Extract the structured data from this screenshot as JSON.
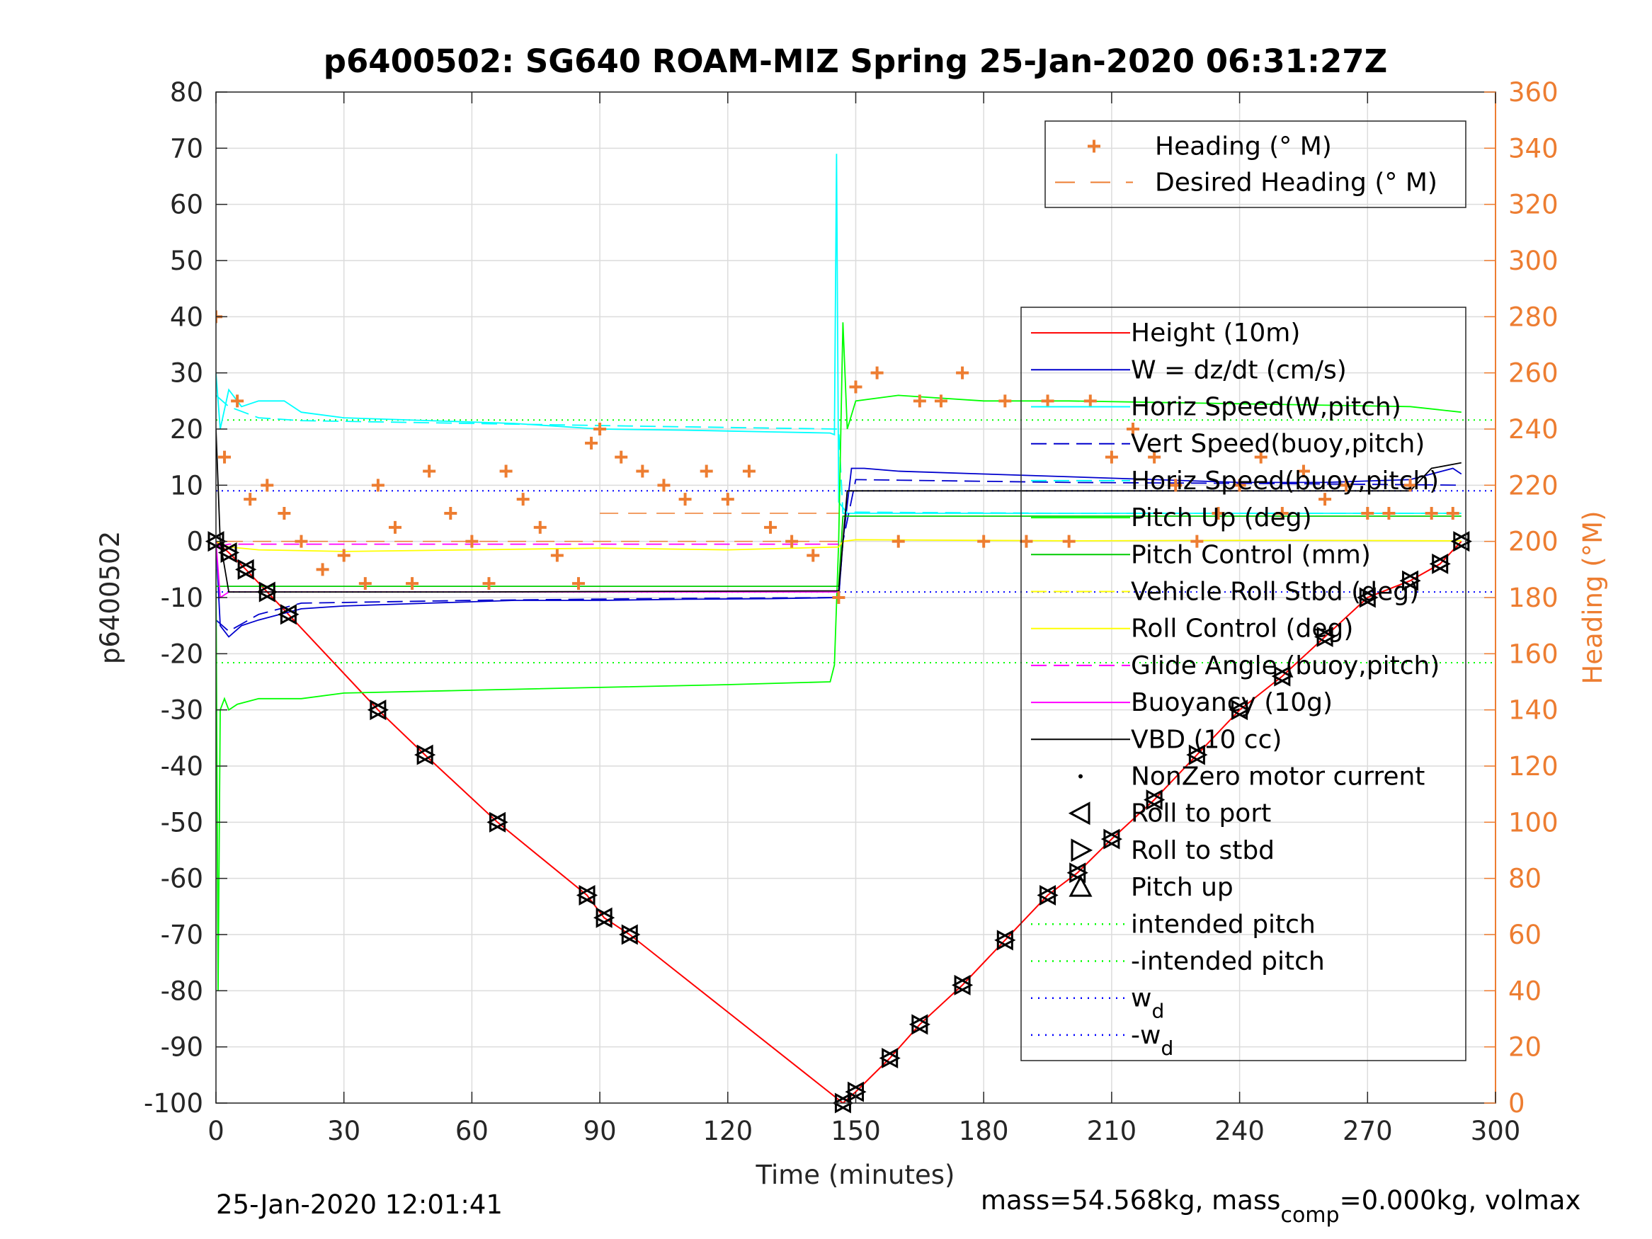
{
  "chart_data": {
    "type": "line",
    "title": "p6400502: SG640 ROAM-MIZ Spring 25-Jan-2020 06:31:27Z",
    "xlabel": "Time (minutes)",
    "ylabel": "p6400502",
    "ylabel_right": "Heading (°M)",
    "xlim": [
      0,
      300
    ],
    "ylim": [
      -100,
      80
    ],
    "ylim_right": [
      0,
      360
    ],
    "grid": true,
    "x_ticks": [
      "0",
      "30",
      "60",
      "90",
      "120",
      "150",
      "180",
      "210",
      "240",
      "270",
      "300"
    ],
    "y_ticks": [
      "80",
      "70",
      "60",
      "50",
      "40",
      "30",
      "20",
      "10",
      "0",
      "-10",
      "-20",
      "-30",
      "-40",
      "-50",
      "-60",
      "-70",
      "-80",
      "-90",
      "-100"
    ],
    "y_ticks_right": [
      "360",
      "340",
      "320",
      "300",
      "280",
      "260",
      "240",
      "220",
      "200",
      "180",
      "160",
      "140",
      "120",
      "100",
      "80",
      "60",
      "40",
      "20",
      "0"
    ],
    "footer_left": "25-Jan-2020 12:01:41",
    "footer_right_prefix": "mass=54.568kg, mass",
    "footer_right_sub": "comp",
    "footer_right_suffix": "=0.000kg, volmax",
    "legend_top": {
      "placement": "top-right",
      "entries": [
        {
          "label": "Heading (° M)",
          "color": "#ED7D31",
          "style": "plus"
        },
        {
          "label": "Desired Heading (° M)",
          "color": "#ED7D31",
          "style": "dash"
        }
      ]
    },
    "legend_main": {
      "placement": "right",
      "entries": [
        {
          "label": "Height (10m)",
          "color": "#FF0000",
          "style": "line"
        },
        {
          "label": "W = dz/dt (cm/s)",
          "color": "#0000CD",
          "style": "line"
        },
        {
          "label": "Horiz Speed(W,pitch)",
          "color": "#00FFFF",
          "style": "line"
        },
        {
          "label": "Vert Speed(buoy,pitch)",
          "color": "#0000CD",
          "style": "dashline"
        },
        {
          "label": "Horiz Speed(buoy,pitch)",
          "color": "#00FFFF",
          "style": "dashline"
        },
        {
          "label": "Pitch Up (deg)",
          "color": "#00FF00",
          "style": "line"
        },
        {
          "label": "Pitch Control (mm)",
          "color": "#00CC00",
          "style": "line"
        },
        {
          "label": "Vehicle Roll Stbd (deg)",
          "color": "#FFFF00",
          "style": "dashline"
        },
        {
          "label": "Roll Control (deg)",
          "color": "#FFFF00",
          "style": "line"
        },
        {
          "label": "Glide Angle (buoy,pitch)",
          "color": "#FF00FF",
          "style": "dashline"
        },
        {
          "label": "Buoyancy (10g)",
          "color": "#FF00FF",
          "style": "line"
        },
        {
          "label": "VBD (10 cc)",
          "color": "#000000",
          "style": "line"
        },
        {
          "label": "NonZero motor current",
          "color": "#000000",
          "style": "dot"
        },
        {
          "label": "Roll to port",
          "color": "#000000",
          "style": "tri-left"
        },
        {
          "label": "Roll to stbd",
          "color": "#000000",
          "style": "tri-right"
        },
        {
          "label": "Pitch up",
          "color": "#000000",
          "style": "tri-up"
        },
        {
          "label": "intended pitch",
          "color": "#00FF00",
          "style": "dot-line"
        },
        {
          "label": "-intended pitch",
          "color": "#00FF00",
          "style": "dot-line"
        },
        {
          "label": "w",
          "sub": "d",
          "color": "#0000FF",
          "style": "dot-line"
        },
        {
          "label": "-w",
          "sub": "d",
          "color": "#0000FF",
          "style": "dot-line"
        }
      ]
    },
    "reference_lines": {
      "intended_pitch": 21.6,
      "neg_intended_pitch": -21.6,
      "w_d": 9,
      "neg_w_d": -9,
      "desired_heading_dive": 200,
      "desired_heading_dive_2": 210
    },
    "series": [
      {
        "name": "Height (10m)",
        "color": "#FF0000",
        "x": [
          0,
          3,
          7,
          12,
          17,
          38,
          49,
          66,
          87,
          91,
          97,
          147,
          150,
          158,
          165,
          175,
          185,
          195,
          202,
          210,
          220,
          230,
          240,
          250,
          260,
          270,
          280,
          287,
          292
        ],
        "y": [
          0,
          -2,
          -5,
          -9,
          -13,
          -30,
          -38,
          -50,
          -63,
          -67,
          -70,
          -100,
          -98,
          -92,
          -86,
          -79,
          -71,
          -63,
          -59,
          -53,
          -46,
          -38,
          -30,
          -24,
          -17,
          -10,
          -7,
          -4,
          0
        ]
      },
      {
        "name": "W = dz/dt (cm/s)",
        "color": "#0000CD",
        "x": [
          0,
          1,
          3,
          6,
          10,
          15,
          20,
          30,
          50,
          70,
          90,
          110,
          130,
          146,
          147,
          149,
          152,
          160,
          180,
          200,
          220,
          240,
          260,
          280,
          290,
          292
        ],
        "y": [
          0,
          -15,
          -17,
          -15,
          -14,
          -13,
          -12,
          -11.5,
          -11,
          -10.5,
          -10.5,
          -10.3,
          -10.2,
          -10,
          0,
          13,
          13,
          12.5,
          12,
          11.5,
          11,
          10.5,
          10.5,
          11,
          13,
          12
        ]
      },
      {
        "name": "Horiz Speed(W,pitch)",
        "color": "#00FFFF",
        "x": [
          0,
          1,
          3,
          6,
          10,
          16,
          20,
          30,
          50,
          70,
          90,
          110,
          130,
          144,
          145,
          145.5,
          146,
          148,
          152,
          170,
          200,
          240,
          280,
          292
        ],
        "y": [
          30,
          20,
          27,
          24,
          25,
          25,
          23,
          22,
          21.5,
          21,
          20,
          19.8,
          19.5,
          19.3,
          19,
          69,
          7,
          5,
          5,
          5,
          5,
          5,
          5,
          5
        ]
      },
      {
        "name": "Vert Speed(buoy,pitch)",
        "color": "#0000CD",
        "style": "dash",
        "x": [
          0,
          3,
          10,
          20,
          60,
          100,
          146,
          147,
          150,
          200,
          250,
          292
        ],
        "y": [
          -14,
          -16,
          -13,
          -11,
          -10.5,
          -10.2,
          -10,
          0,
          11,
          10.5,
          10.3,
          10
        ]
      },
      {
        "name": "Horiz Speed(buoy,pitch)",
        "color": "#00FFFF",
        "style": "dash",
        "x": [
          0,
          3,
          10,
          20,
          60,
          100,
          146,
          147,
          150,
          200,
          250,
          292
        ],
        "y": [
          26,
          24,
          22,
          21.5,
          21,
          20.5,
          20,
          5,
          5.2,
          5,
          5,
          5
        ]
      },
      {
        "name": "Pitch Up (deg)",
        "color": "#00FF00",
        "x": [
          0,
          0.5,
          1,
          2,
          3,
          5,
          10,
          20,
          30,
          60,
          90,
          120,
          144,
          145,
          146,
          147,
          148,
          150,
          160,
          180,
          200,
          240,
          280,
          292
        ],
        "y": [
          -5,
          -80,
          -30,
          -28,
          -30,
          -29,
          -28,
          -28,
          -27,
          -26.5,
          -26,
          -25.5,
          -25,
          -22,
          0,
          39,
          20,
          25,
          26,
          25,
          25,
          24.5,
          24,
          23
        ]
      },
      {
        "name": "Pitch Control (mm)",
        "color": "#00CC00",
        "x": [
          0,
          3,
          60,
          100,
          146,
          147,
          150,
          200,
          250,
          292
        ],
        "y": [
          -8,
          -8,
          -8,
          -8,
          -8,
          4.5,
          4.5,
          4.5,
          4.5,
          4.5
        ]
      },
      {
        "name": "Roll Control (deg)",
        "color": "#FFFF00",
        "x": [
          0,
          3,
          10,
          30,
          60,
          90,
          120,
          146,
          147,
          150,
          200,
          250,
          292
        ],
        "y": [
          0,
          -1,
          -1.5,
          -1.8,
          -1.5,
          -1.2,
          -1.5,
          -1,
          0,
          0.3,
          0.1,
          0.2,
          0.1
        ]
      },
      {
        "name": "Glide Angle (buoy,pitch)",
        "color": "#FF00FF",
        "style": "dash",
        "x": [
          0,
          3,
          30,
          60,
          100,
          146
        ],
        "y": [
          -1,
          -0.5,
          -0.5,
          -0.5,
          -0.5,
          -0.5
        ]
      },
      {
        "name": "Buoyancy (10g)",
        "color": "#FF00FF",
        "x": [
          0,
          1,
          3,
          146
        ],
        "y": [
          0,
          -10,
          -9,
          -9
        ]
      },
      {
        "name": "VBD (10 cc)",
        "color": "#000000",
        "x": [
          0,
          1,
          3,
          60,
          146,
          147,
          148,
          200,
          250,
          280,
          285,
          292
        ],
        "y": [
          20,
          0,
          -9,
          -9,
          -8.8,
          0,
          9,
          9,
          9,
          9,
          13,
          14
        ]
      },
      {
        "name": "Heading (° M)",
        "color": "#ED7D31",
        "axis": "right",
        "x": [
          0,
          2,
          5,
          8,
          12,
          16,
          20,
          25,
          30,
          35,
          38,
          42,
          46,
          50,
          55,
          60,
          64,
          68,
          72,
          76,
          80,
          85,
          88,
          90,
          95,
          100,
          105,
          110,
          115,
          120,
          125,
          130,
          135,
          140,
          146,
          150,
          155,
          160,
          165,
          170,
          175,
          180,
          185,
          190,
          195,
          200,
          205,
          210,
          215,
          220,
          225,
          230,
          235,
          240,
          245,
          250,
          255,
          260,
          265,
          270,
          275,
          280,
          285,
          290
        ],
        "y": [
          280,
          230,
          250,
          215,
          220,
          210,
          200,
          190,
          195,
          185,
          220,
          205,
          185,
          225,
          210,
          200,
          185,
          225,
          215,
          205,
          195,
          185,
          235,
          240,
          230,
          225,
          220,
          215,
          225,
          215,
          225,
          205,
          200,
          195,
          180,
          255,
          260,
          200,
          250,
          250,
          260,
          200,
          250,
          200,
          250,
          200,
          250,
          230,
          240,
          230,
          220,
          200,
          210,
          220,
          230,
          210,
          225,
          215,
          220,
          210,
          210,
          220,
          210,
          210
        ]
      }
    ]
  }
}
